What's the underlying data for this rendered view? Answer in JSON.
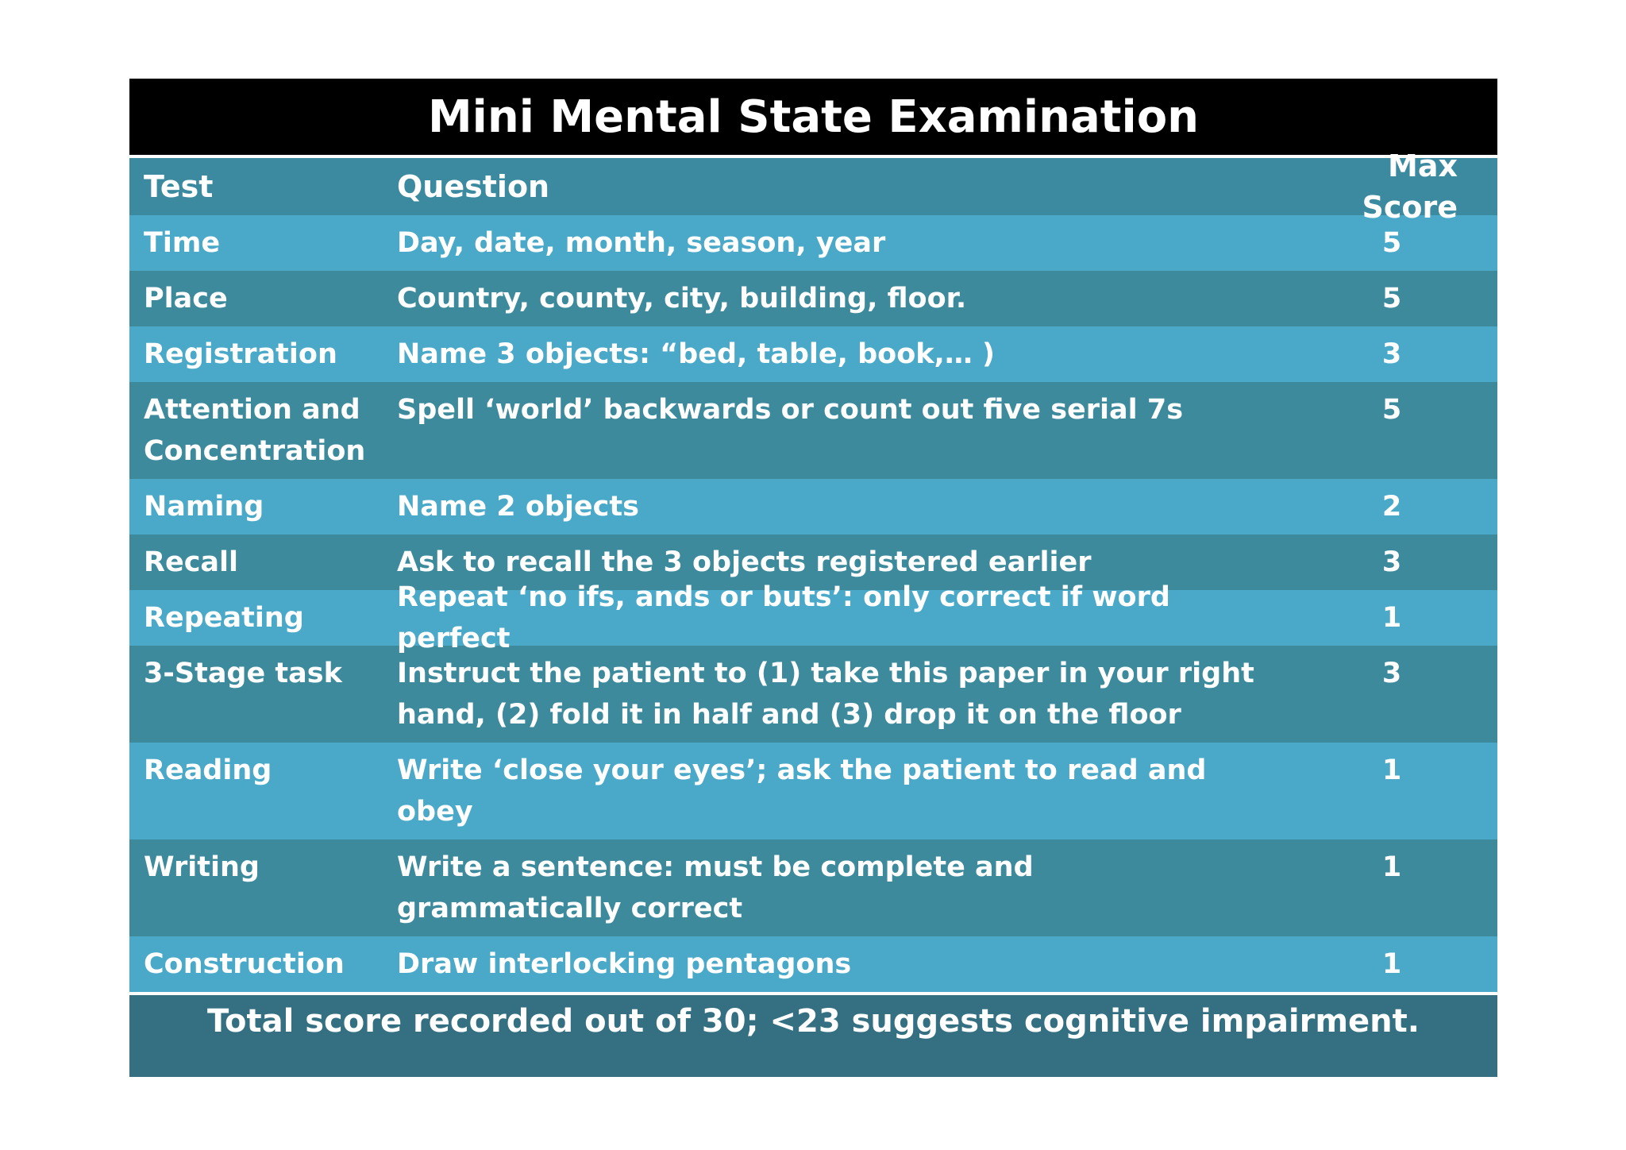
{
  "title": "Mini Mental State Examination",
  "headers": {
    "test": "Test",
    "question": "Question",
    "max_score": "Max Score"
  },
  "rows": [
    {
      "test": "Time",
      "question": "Day, date, month, season, year",
      "score": "5"
    },
    {
      "test": "Place",
      "question": "Country, county, city, building, floor.",
      "score": "5"
    },
    {
      "test": "Registration",
      "question": "Name 3 objects: “bed, table, book,… )",
      "score": "3"
    },
    {
      "test": "Attention and Concentration",
      "question": "Spell ‘world’ backwards or count out five serial 7s",
      "score": "5"
    },
    {
      "test": "Naming",
      "question": "Name 2 objects",
      "score": "2"
    },
    {
      "test": "Recall",
      "question": "Ask to recall the 3 objects registered earlier",
      "score": "3"
    },
    {
      "test": "Repeating",
      "question": "Repeat ‘no ifs, ands or buts’: only correct if word perfect",
      "score": "1"
    },
    {
      "test": "3-Stage task",
      "question": "Instruct the patient to (1) take this paper in your right hand, (2) fold it in half and (3) drop it on the floor",
      "score": "3"
    },
    {
      "test": "Reading",
      "question": "Write ‘close your eyes’; ask the patient to read and obey",
      "score": "1"
    },
    {
      "test": "Writing",
      "question": "Write a sentence: must be complete and grammatically correct",
      "score": "1"
    },
    {
      "test": "Construction",
      "question": "Draw interlocking pentagons",
      "score": "1"
    }
  ],
  "footer": "Total score recorded out of 30; <23 suggests cognitive impairment.",
  "colors": {
    "title_bg": "#000000",
    "header_bg": "#3b8aa0",
    "row_light": "#4aa9c8",
    "row_dark": "#3d8a9d",
    "footer_bg": "#356f82",
    "text": "#ffffff"
  }
}
